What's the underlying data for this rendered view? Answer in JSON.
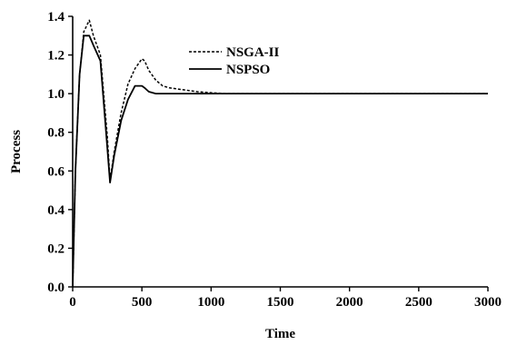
{
  "chart_data": {
    "type": "line",
    "xlabel": "Time",
    "ylabel": "Process",
    "xlim": [
      0,
      3000
    ],
    "ylim": [
      0,
      1.4
    ],
    "xticks": [
      0,
      500,
      1000,
      1500,
      2000,
      2500,
      3000
    ],
    "yticks": [
      0.0,
      0.2,
      0.4,
      0.6,
      0.8,
      1.0,
      1.2,
      1.4
    ],
    "ytick_labels": [
      "0.0",
      "0.2",
      "0.4",
      "0.6",
      "0.8",
      "1.0",
      "1.2",
      "1.4"
    ],
    "grid": false,
    "legend_position": "top-center",
    "series": [
      {
        "name": "NSGA-II",
        "style": "dashed",
        "color": "#000000",
        "x": [
          0,
          20,
          50,
          80,
          120,
          150,
          200,
          250,
          270,
          300,
          350,
          400,
          450,
          500,
          520,
          550,
          600,
          650,
          700,
          800,
          900,
          1000,
          1100,
          1500,
          2000,
          2500,
          3000
        ],
        "y": [
          0.0,
          0.6,
          1.1,
          1.32,
          1.38,
          1.3,
          1.2,
          0.78,
          0.55,
          0.7,
          0.9,
          1.05,
          1.13,
          1.18,
          1.17,
          1.12,
          1.07,
          1.04,
          1.03,
          1.02,
          1.01,
          1.005,
          1.0,
          1.0,
          1.0,
          1.0,
          1.0
        ]
      },
      {
        "name": "NSPSO",
        "style": "solid",
        "color": "#000000",
        "x": [
          0,
          20,
          50,
          80,
          120,
          150,
          200,
          250,
          270,
          300,
          350,
          400,
          450,
          500,
          520,
          550,
          600,
          650,
          700,
          800,
          1000,
          1500,
          2000,
          2500,
          3000
        ],
        "y": [
          0.0,
          0.6,
          1.1,
          1.3,
          1.3,
          1.25,
          1.17,
          0.72,
          0.54,
          0.68,
          0.86,
          0.97,
          1.04,
          1.04,
          1.03,
          1.01,
          1.0,
          1.0,
          1.0,
          1.0,
          1.0,
          1.0,
          1.0,
          1.0,
          1.0
        ]
      }
    ]
  }
}
